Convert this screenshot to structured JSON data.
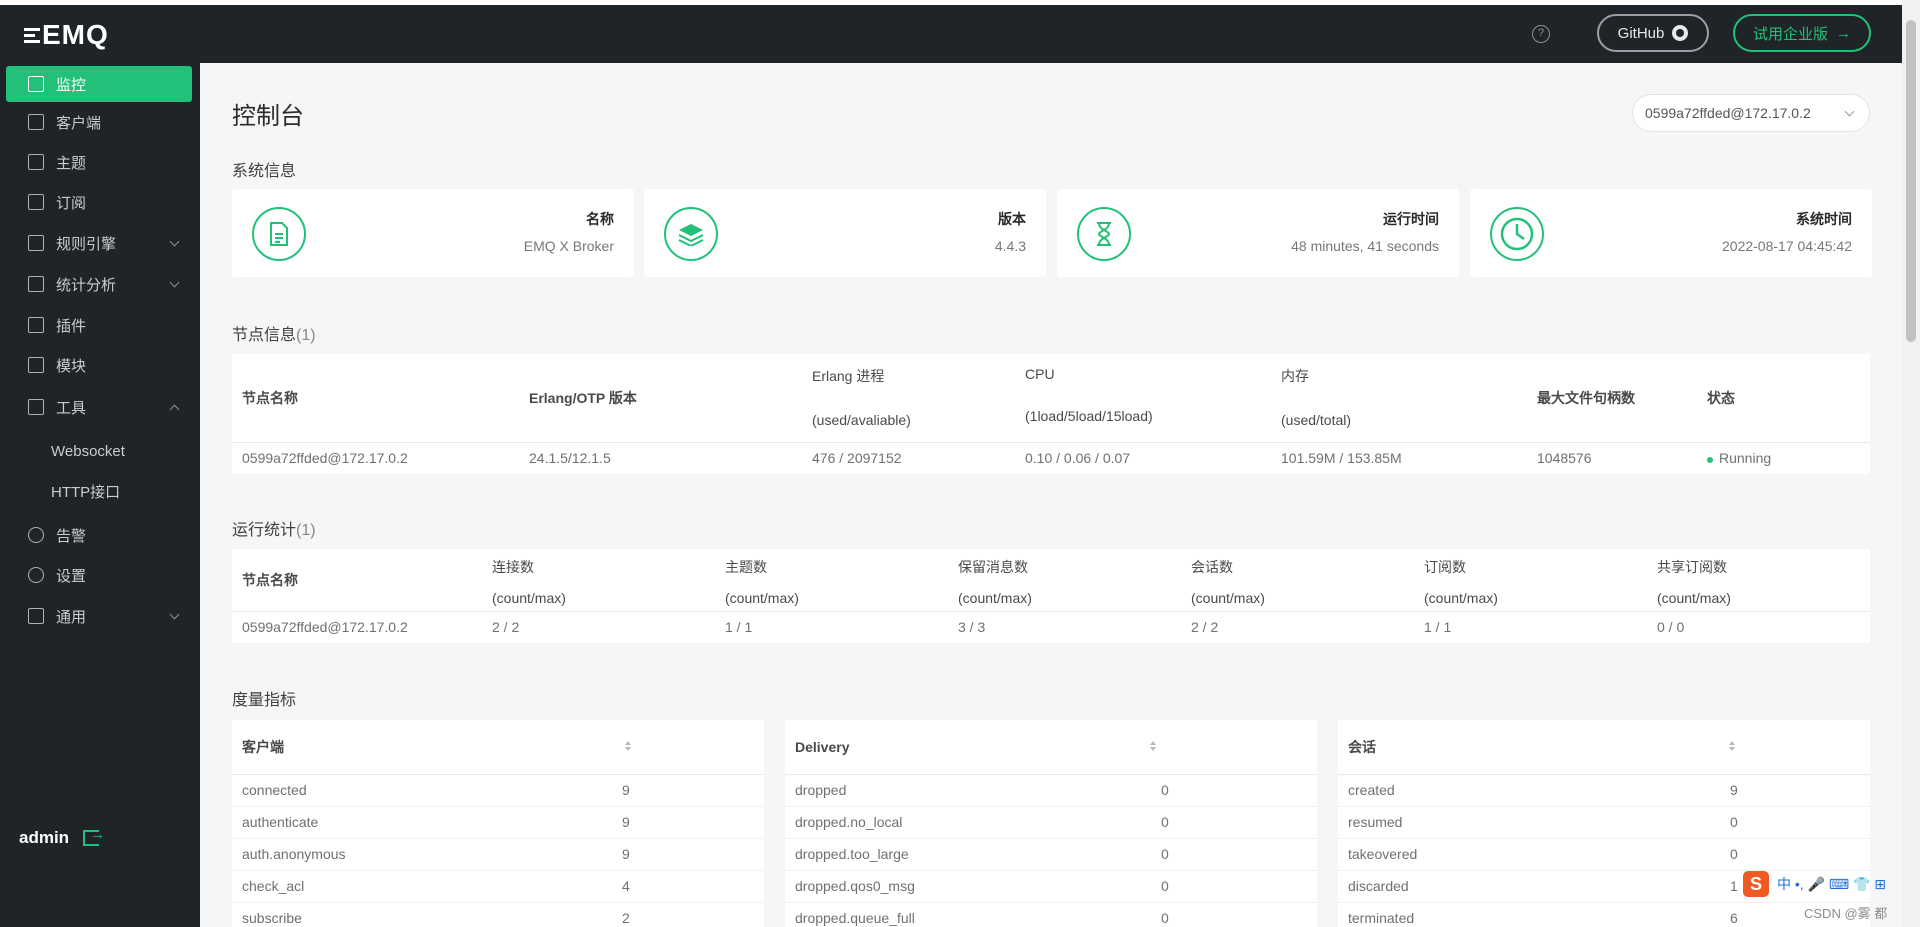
{
  "app": {
    "logo": "EMQ"
  },
  "header": {
    "help_icon": "?",
    "github_label": "GitHub",
    "trial_label": "试用企业版",
    "trial_arrow": "→"
  },
  "sidebar": {
    "items": [
      {
        "label": "监控",
        "icon": "monitor-icon",
        "active": true
      },
      {
        "label": "客户端",
        "icon": "clients-icon"
      },
      {
        "label": "主题",
        "icon": "topics-icon"
      },
      {
        "label": "订阅",
        "icon": "subscriptions-icon"
      },
      {
        "label": "规则引擎",
        "icon": "rules-icon",
        "expand": "down"
      },
      {
        "label": "统计分析",
        "icon": "analytics-icon",
        "expand": "down"
      },
      {
        "label": "插件",
        "icon": "plugins-icon"
      },
      {
        "label": "模块",
        "icon": "modules-icon"
      },
      {
        "label": "工具",
        "icon": "tools-icon",
        "expand": "up"
      },
      {
        "label": "告警",
        "icon": "alarm-icon"
      },
      {
        "label": "设置",
        "icon": "settings-icon"
      },
      {
        "label": "通用",
        "icon": "general-icon",
        "expand": "down"
      }
    ],
    "tool_sub_items": [
      "Websocket",
      "HTTP接口"
    ],
    "user": "admin"
  },
  "page": {
    "title": "控制台",
    "node_selected": "0599a72ffded@172.17.0.2",
    "system_info_title": "系统信息",
    "cards": [
      {
        "label": "名称",
        "value": "EMQ X Broker",
        "icon": "document-icon"
      },
      {
        "label": "版本",
        "value": "4.4.3",
        "icon": "layers-icon"
      },
      {
        "label": "运行时间",
        "value": "48 minutes, 41 seconds",
        "icon": "hourglass-icon"
      },
      {
        "label": "系统时间",
        "value": "2022-08-17 04:45:42",
        "icon": "clock-icon"
      }
    ]
  },
  "nodes": {
    "title": "节点信息",
    "count": "(1)",
    "headers": {
      "name": "节点名称",
      "otp": "Erlang/OTP 版本",
      "proc": "Erlang 进程",
      "proc_sub": "(used/avaliable)",
      "cpu": "CPU",
      "cpu_sub": "(1load/5load/15load)",
      "mem": "内存",
      "mem_sub": "(used/total)",
      "fd": "最大文件句柄数",
      "status": "状态"
    },
    "row": {
      "name": "0599a72ffded@172.17.0.2",
      "otp": "24.1.5/12.1.5",
      "proc": "476 / 2097152",
      "cpu": "0.10 / 0.06 / 0.07",
      "mem": "101.59M / 153.85M",
      "fd": "1048576",
      "status": "Running"
    }
  },
  "stats": {
    "title": "运行统计",
    "count": "(1)",
    "headers": {
      "name": "节点名称",
      "conn": "连接数",
      "topics": "主题数",
      "retained": "保留消息数",
      "sessions": "会话数",
      "subs": "订阅数",
      "shared": "共享订阅数",
      "sub": "(count/max)"
    },
    "row": {
      "name": "0599a72ffded@172.17.0.2",
      "conn": "2 / 2",
      "topics": "1 / 1",
      "retained": "3 / 3",
      "sessions": "2 / 2",
      "subs": "1 / 1",
      "shared": "0 / 0"
    }
  },
  "metrics": {
    "title": "度量指标",
    "tables": [
      {
        "header": "客户端",
        "rows": [
          [
            "connected",
            "9"
          ],
          [
            "authenticate",
            "9"
          ],
          [
            "auth.anonymous",
            "9"
          ],
          [
            "check_acl",
            "4"
          ],
          [
            "subscribe",
            "2"
          ]
        ]
      },
      {
        "header": "Delivery",
        "rows": [
          [
            "dropped",
            "0"
          ],
          [
            "dropped.no_local",
            "0"
          ],
          [
            "dropped.too_large",
            "0"
          ],
          [
            "dropped.qos0_msg",
            "0"
          ],
          [
            "dropped.queue_full",
            "0"
          ]
        ]
      },
      {
        "header": "会话",
        "rows": [
          [
            "created",
            "9"
          ],
          [
            "resumed",
            "0"
          ],
          [
            "takeovered",
            "0"
          ],
          [
            "discarded",
            "1"
          ],
          [
            "terminated",
            "6"
          ]
        ]
      }
    ]
  },
  "overlay": {
    "ime_logo": "S",
    "ime_text": "中 •, 🎤 ⌨ 👕 ⊞",
    "watermark": "CSDN @雾    都"
  }
}
